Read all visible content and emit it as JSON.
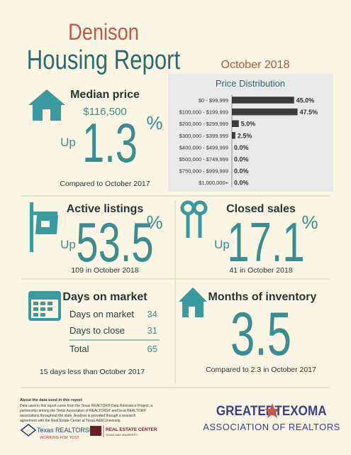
{
  "header": {
    "city": "Denison",
    "title": "Housing Report",
    "date": "October 2018"
  },
  "median_price": {
    "title": "Median price",
    "price": "$116,500",
    "direction": "Up",
    "change": 1.3,
    "unit": "%",
    "note": "Compared to October 2017"
  },
  "active_listings": {
    "title": "Active listings",
    "direction": "Up",
    "change": 53.5,
    "unit": "%",
    "note": "109 in October 2018"
  },
  "closed_sales": {
    "title": "Closed sales",
    "direction": "Up",
    "change": 17.1,
    "unit": "%",
    "note": "41 in October 2018"
  },
  "days_on_market": {
    "title": "Days on market",
    "rows": [
      [
        "Days on market",
        34
      ],
      [
        "Days to close",
        31
      ],
      [
        "Total",
        65
      ]
    ],
    "note": "15 days less than October 2017"
  },
  "months_of_inventory": {
    "title": "Months of inventory",
    "value": 3.5,
    "note": "Compared to 2.3 in October 2017"
  },
  "chart_data": {
    "type": "bar",
    "orientation": "horizontal",
    "title": "Price Distribution",
    "categories": [
      "$0 - $99,999",
      "$100,000 - $199,999",
      "$200,000 - $299,999",
      "$300,000 - $399,999",
      "$400,000 - $499,999",
      "$500,000 - $749,999",
      "$750,000 - $999,999",
      "$1,000,000+"
    ],
    "values": [
      45,
      47.5,
      5,
      2.5,
      0,
      0,
      0,
      0
    ],
    "value_labels": [
      "45.0%",
      "47.5%",
      "5.0%",
      "2.5%",
      "0.0%",
      "0.0%",
      "0.0%",
      "0.0%"
    ],
    "color": "#3b3b3b"
  },
  "footer": {
    "heading": "About the data used in this report",
    "lines": [
      "Data used in this report come from the Texas REALTOR® Data Relevance Project, a",
      "partnership among the Texas Association of REALTORS® and local REALTOR®",
      "associations throughout the state. Analysis is provided through a research",
      "agreement with the Real Estate Center at Texas A&M University."
    ],
    "texas_realtors": "Texas REALTORS®",
    "texas_realtors_tagline": "WORKING FOR YOU!",
    "center": "REAL ESTATE CENTER",
    "center_sub": "TEXAS A&M UNIVERSITY",
    "association_top_left": "GREATER",
    "association_top_right": "TEXOMA",
    "association_bottom": "ASSOCIATION OF REALTORS"
  }
}
